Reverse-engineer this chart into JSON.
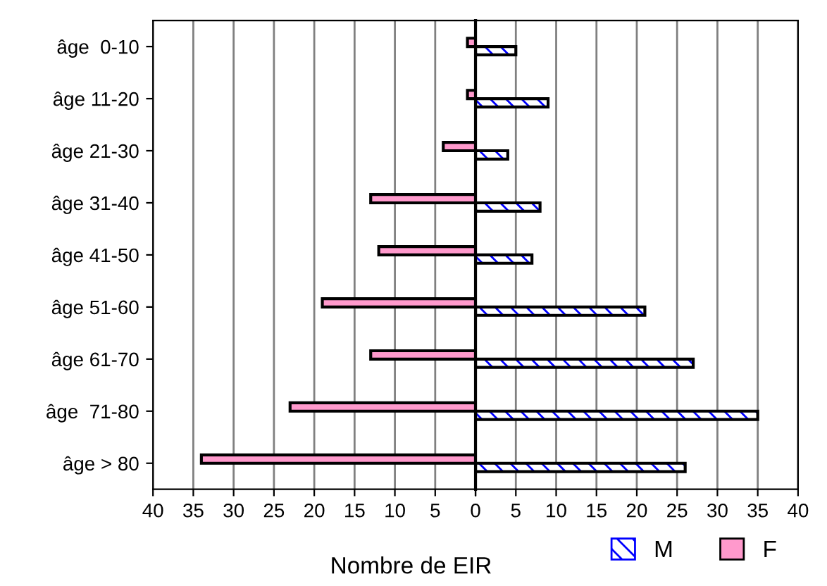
{
  "chart_data": [
    {
      "type": "bar",
      "orientation": "horizontal",
      "xlabel": "Nombre de EIR",
      "categories": [
        "âge  0-10",
        "âge 11-20",
        "âge 21-30",
        "âge 31-40",
        "âge 41-50",
        "âge 51-60",
        "âge 61-70",
        "âge  71-80",
        "âge > 80"
      ],
      "series": [
        {
          "name": "F",
          "color": "#ff99cc",
          "values": [
            1,
            1,
            4,
            13,
            12,
            19,
            13,
            23,
            34
          ]
        }
      ],
      "xlim": [
        40,
        0
      ],
      "xticks": [
        40,
        35,
        30,
        25,
        20,
        15,
        10,
        5,
        0
      ],
      "grid": "x",
      "legend": "bottom right"
    },
    {
      "type": "bar",
      "orientation": "horizontal",
      "categories": [
        null,
        null,
        null,
        null,
        null,
        null,
        null,
        null,
        null
      ],
      "series": [
        {
          "name": "M",
          "color": "#0000ff",
          "values": [
            5,
            9,
            4,
            8,
            7,
            21,
            27,
            35,
            26
          ]
        }
      ],
      "xlim": [
        0,
        40
      ],
      "xticks": [
        {
          "value": 0,
          "label": null
        },
        5,
        10,
        15,
        20,
        25,
        30,
        35,
        40
      ],
      "grid": "x",
      "legend": "bottom right",
      "tick_labels": "x"
    }
  ]
}
